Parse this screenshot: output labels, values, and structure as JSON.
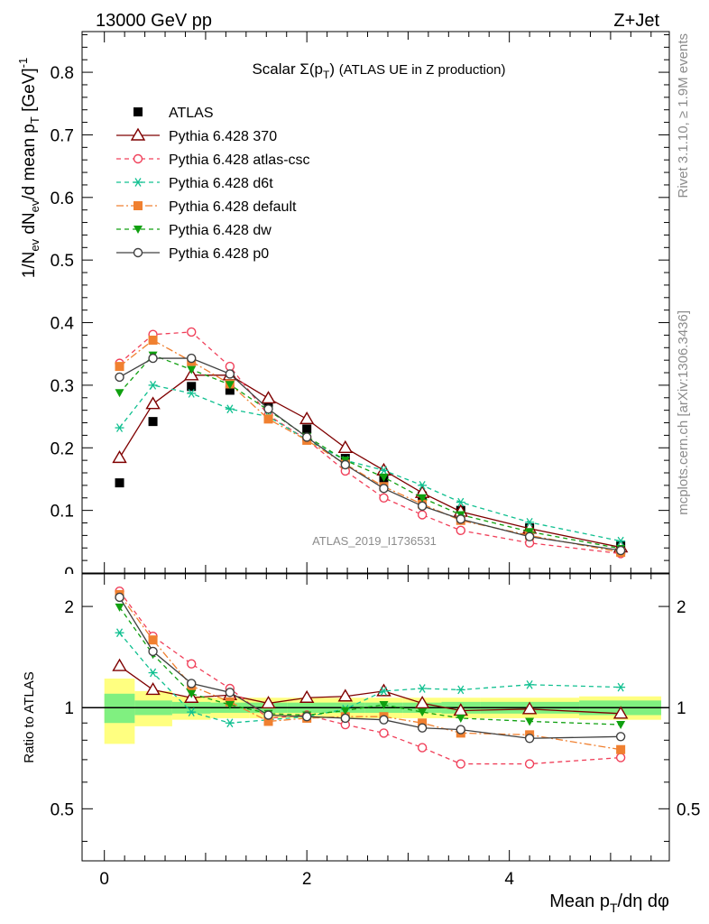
{
  "header": {
    "energy_label": "13000 GeV pp",
    "process_label": "Z+Jet"
  },
  "side": {
    "rivet_label": "Rivet 3.1.10, ≥ 1.9M events",
    "mcplots_label": "mcplots.cern.ch [arXiv:1306.3436]"
  },
  "chart_data": {
    "type": "line",
    "title": "Scalar Σ(p_T) (ATLAS UE in Z production)",
    "analysis_id": "ATLAS_2019_I1736531",
    "xlabel": "Mean p_T/dη dφ",
    "ylabel": "1/N_ev dN_ev/d mean p_T [GeV]^-1",
    "ratio_ylabel": "Ratio to ATLAS",
    "xlim": [
      -0.22,
      5.58
    ],
    "ylim": [
      0,
      0.865
    ],
    "ratio_ylim": [
      0.35,
      2.5
    ],
    "x_ticks": [
      0,
      2,
      4
    ],
    "y_ticks": [
      0.1,
      0.2,
      0.3,
      0.4,
      0.5,
      0.6,
      0.7,
      0.8
    ],
    "y_tick_labels": [
      "0.1",
      "0.2",
      "0.3",
      "0.4",
      "0.5",
      "0.6",
      "0.7",
      "0.8"
    ],
    "ratio_ticks": [
      0.5,
      1,
      2
    ],
    "legend_placement": "top-left",
    "x": [
      0.15,
      0.48,
      0.86,
      1.24,
      1.62,
      2.0,
      2.38,
      2.76,
      3.14,
      3.52,
      4.2,
      5.1
    ],
    "ratio_band": {
      "edges": [
        0.0,
        0.3,
        0.67,
        1.05,
        1.43,
        1.81,
        2.19,
        2.57,
        2.95,
        3.33,
        3.71,
        4.69,
        5.5
      ],
      "inner": [
        0.1,
        0.05,
        0.04,
        0.035,
        0.035,
        0.035,
        0.035,
        0.035,
        0.035,
        0.04,
        0.04,
        0.05
      ],
      "outer": [
        0.22,
        0.12,
        0.08,
        0.07,
        0.07,
        0.07,
        0.07,
        0.07,
        0.07,
        0.07,
        0.07,
        0.08
      ],
      "inner_color": "#80f080",
      "outer_color": "#ffff80"
    },
    "series": [
      {
        "name": "ATLAS",
        "values": [
          0.144,
          0.242,
          0.298,
          0.292,
          0.272,
          0.23,
          0.183,
          0.15,
          0.123,
          0.1,
          0.072,
          0.043
        ],
        "color": "#000000",
        "marker": "filled-square",
        "line": "none"
      },
      {
        "name": "Pythia 6.428 370",
        "values": [
          0.184,
          0.27,
          0.316,
          0.316,
          0.279,
          0.246,
          0.2,
          0.164,
          0.128,
          0.098,
          0.071,
          0.041
        ],
        "color": "#7f0000",
        "marker": "open-triangle",
        "line": "solid"
      },
      {
        "name": "Pythia 6.428 atlas-csc",
        "values": [
          0.335,
          0.381,
          0.385,
          0.33,
          0.252,
          0.213,
          0.163,
          0.12,
          0.093,
          0.068,
          0.048,
          0.031
        ],
        "color": "#f0405a",
        "marker": "open-circle",
        "line": "dashed"
      },
      {
        "name": "Pythia 6.428 d6t",
        "values": [
          0.232,
          0.3,
          0.287,
          0.262,
          0.25,
          0.213,
          0.18,
          0.164,
          0.14,
          0.113,
          0.081,
          0.051
        ],
        "color": "#10c090",
        "marker": "asterisk",
        "line": "dashed"
      },
      {
        "name": "Pythia 6.428 default",
        "values": [
          0.33,
          0.372,
          0.338,
          0.302,
          0.246,
          0.212,
          0.174,
          0.138,
          0.11,
          0.084,
          0.06,
          0.033
        ],
        "color": "#f08030",
        "marker": "filled-square",
        "line": "dashdot"
      },
      {
        "name": "Pythia 6.428 dw",
        "values": [
          0.288,
          0.348,
          0.325,
          0.301,
          0.26,
          0.218,
          0.18,
          0.153,
          0.12,
          0.093,
          0.066,
          0.039
        ],
        "color": "#10a010",
        "marker": "filled-triangle-down",
        "line": "dashed"
      },
      {
        "name": "Pythia 6.428 p0",
        "values": [
          0.313,
          0.343,
          0.343,
          0.318,
          0.262,
          0.217,
          0.173,
          0.135,
          0.107,
          0.086,
          0.058,
          0.036
        ],
        "color": "#404040",
        "marker": "open-circle",
        "line": "solid"
      }
    ],
    "ratio_series": [
      {
        "name": "Pythia 6.428 370",
        "values": [
          1.33,
          1.13,
          1.07,
          1.09,
          1.03,
          1.07,
          1.08,
          1.12,
          1.03,
          0.98,
          0.99,
          0.96
        ]
      },
      {
        "name": "Pythia 6.428 atlas-csc",
        "values": [
          2.22,
          1.63,
          1.35,
          1.14,
          0.93,
          0.95,
          0.89,
          0.84,
          0.76,
          0.68,
          0.68,
          0.71
        ]
      },
      {
        "name": "Pythia 6.428 d6t",
        "values": [
          1.67,
          1.27,
          0.97,
          0.9,
          0.92,
          0.94,
          0.99,
          1.12,
          1.14,
          1.13,
          1.17,
          1.15
        ]
      },
      {
        "name": "Pythia 6.428 default",
        "values": [
          2.17,
          1.59,
          1.16,
          1.04,
          0.91,
          0.93,
          0.94,
          0.94,
          0.9,
          0.84,
          0.83,
          0.75
        ]
      },
      {
        "name": "Pythia 6.428 dw",
        "values": [
          1.99,
          1.44,
          1.1,
          1.02,
          0.96,
          0.95,
          0.98,
          1.02,
          0.97,
          0.93,
          0.91,
          0.89
        ]
      },
      {
        "name": "Pythia 6.428 p0",
        "values": [
          2.13,
          1.47,
          1.18,
          1.11,
          0.95,
          0.94,
          0.93,
          0.92,
          0.87,
          0.86,
          0.81,
          0.82
        ]
      }
    ]
  }
}
